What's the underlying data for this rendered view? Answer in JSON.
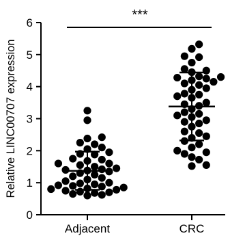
{
  "chart_data": {
    "type": "scatter",
    "ylabel": "Relative LINC00707 expression",
    "xlabel": "",
    "ylim": [
      0,
      6
    ],
    "yticks": [
      "0",
      "1",
      "2",
      "3",
      "4",
      "5",
      "6"
    ],
    "categories": [
      "Adjacent",
      "CRC"
    ],
    "significance": "***",
    "series": [
      {
        "category": "Adjacent",
        "mean": 1.37,
        "sd_low": 0.78,
        "sd_high": 1.97,
        "values": [
          3.25,
          2.95,
          2.42,
          2.38,
          2.25,
          2.2,
          2.1,
          2.05,
          1.95,
          1.9,
          1.88,
          1.75,
          1.72,
          1.68,
          1.6,
          1.6,
          1.55,
          1.5,
          1.45,
          1.42,
          1.4,
          1.38,
          1.35,
          1.3,
          1.25,
          1.2,
          1.15,
          1.1,
          1.05,
          1.0,
          0.98,
          0.95,
          0.92,
          0.9,
          0.88,
          0.85,
          0.82,
          0.8,
          0.78,
          0.75,
          0.72,
          0.7,
          0.68,
          0.65,
          0.62,
          0.6
        ]
      },
      {
        "category": "CRC",
        "mean": 3.38,
        "sd_low": 2.32,
        "sd_high": 4.44,
        "values": [
          5.32,
          5.18,
          4.95,
          4.92,
          4.75,
          4.55,
          4.5,
          4.45,
          4.32,
          4.3,
          4.28,
          4.25,
          4.2,
          4.15,
          4.1,
          4.05,
          3.95,
          3.9,
          3.78,
          3.75,
          3.7,
          3.65,
          3.5,
          3.45,
          3.4,
          3.3,
          3.2,
          3.15,
          3.1,
          3.05,
          2.95,
          2.9,
          2.85,
          2.75,
          2.6,
          2.55,
          2.45,
          2.4,
          2.3,
          2.2,
          2.1,
          2.0,
          1.95,
          1.9,
          1.8,
          1.72,
          1.55,
          1.52
        ]
      }
    ]
  }
}
